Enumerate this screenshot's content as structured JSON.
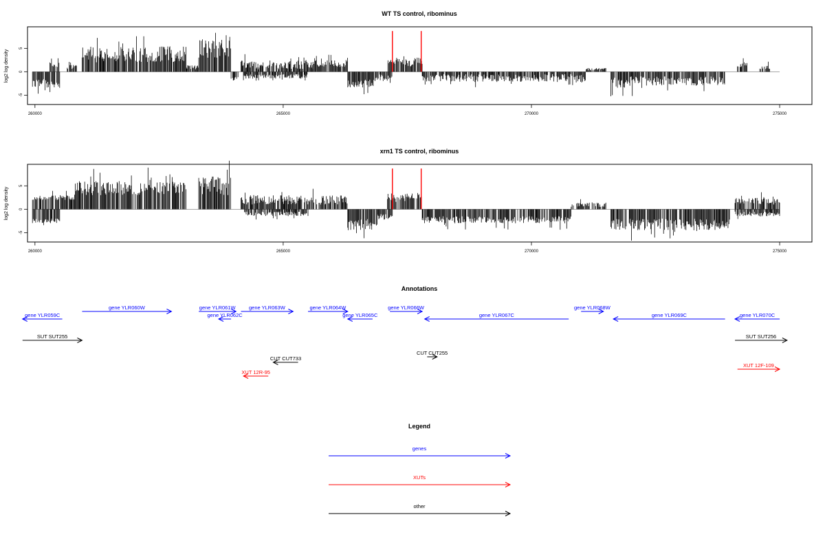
{
  "chart_data": [
    {
      "type": "bar",
      "title": "WT TS control, ribominus",
      "ylabel": "log2 log density",
      "xlim": [
        259850,
        275650
      ],
      "ylim": [
        -7,
        9.6
      ],
      "x_ticks": [
        {
          "value": 260000,
          "label": "260000"
        },
        {
          "value": 265000,
          "label": "265000"
        },
        {
          "value": 270000,
          "label": "270000"
        },
        {
          "value": 275000,
          "label": "275000"
        }
      ],
      "y_ticks": [
        {
          "value": -5,
          "label": "-5"
        },
        {
          "value": 0,
          "label": "0"
        },
        {
          "value": 5,
          "label": "5"
        }
      ],
      "baseline": [
        259950,
        275000
      ],
      "highlight_color": "#ff0000",
      "highlights": [
        {
          "x": 267200,
          "y": 8.7
        },
        {
          "x": 267780,
          "y": 8.7
        }
      ],
      "profile": [
        {
          "x": [
            259950,
            260500
          ],
          "y": [
            -3.5,
            -1.5
          ],
          "pos": false
        },
        {
          "x": [
            260300,
            260500
          ],
          "y": [
            1,
            2
          ],
          "pos": true
        },
        {
          "x": [
            260650,
            260850
          ],
          "y": [
            0.5,
            1.5
          ],
          "pos": true
        },
        {
          "x": [
            260950,
            263050
          ],
          "y": [
            2,
            5.5
          ],
          "pos": true
        },
        {
          "x": [
            263050,
            263300
          ],
          "y": [
            0.5,
            1.5
          ],
          "pos": true
        },
        {
          "x": [
            263300,
            263950
          ],
          "y": [
            3,
            7
          ],
          "pos": true
        },
        {
          "x": [
            263950,
            264100
          ],
          "y": [
            -1,
            -2
          ],
          "pos": false
        },
        {
          "x": [
            264150,
            265500
          ],
          "y": [
            0.5,
            2.5
          ],
          "pos": true
        },
        {
          "x": [
            264200,
            265500
          ],
          "y": [
            -0.5,
            -1.5
          ],
          "pos": false
        },
        {
          "x": [
            265500,
            265600
          ],
          "y": [
            0.5,
            2
          ],
          "pos": true
        },
        {
          "x": [
            265600,
            266300
          ],
          "y": [
            1,
            2.5
          ],
          "pos": true
        },
        {
          "x": [
            266300,
            266850
          ],
          "y": [
            -1.5,
            -3.5
          ],
          "pos": false
        },
        {
          "x": [
            266850,
            267200
          ],
          "y": [
            -0.5,
            -2
          ],
          "pos": false
        },
        {
          "x": [
            267100,
            267350
          ],
          "y": [
            1.5,
            3
          ],
          "pos": true
        },
        {
          "x": [
            267350,
            267650
          ],
          "y": [
            1,
            2.5
          ],
          "pos": true
        },
        {
          "x": [
            267650,
            267800
          ],
          "y": [
            1.5,
            3
          ],
          "pos": true
        },
        {
          "x": [
            267800,
            271100
          ],
          "y": [
            -0.5,
            -2.2
          ],
          "pos": false
        },
        {
          "x": [
            271100,
            271500
          ],
          "y": [
            0.3,
            0.8
          ],
          "pos": true
        },
        {
          "x": [
            271600,
            272500
          ],
          "y": [
            -1,
            -3.5
          ],
          "pos": false
        },
        {
          "x": [
            272500,
            273900
          ],
          "y": [
            -1,
            -3
          ],
          "pos": false
        },
        {
          "x": [
            274150,
            274350
          ],
          "y": [
            1,
            2
          ],
          "pos": true
        },
        {
          "x": [
            274600,
            274800
          ],
          "y": [
            0.5,
            1.5
          ],
          "pos": true
        }
      ]
    },
    {
      "type": "bar",
      "title": "xrn1 TS control, ribominus",
      "ylabel": "log2 log density",
      "xlim": [
        259850,
        275650
      ],
      "ylim": [
        -7,
        9.6
      ],
      "x_ticks": [
        {
          "value": 260000,
          "label": "260000"
        },
        {
          "value": 265000,
          "label": "265000"
        },
        {
          "value": 270000,
          "label": "270000"
        },
        {
          "value": 275000,
          "label": "275000"
        }
      ],
      "y_ticks": [
        {
          "value": -5,
          "label": "-5"
        },
        {
          "value": 0,
          "label": "0"
        },
        {
          "value": 5,
          "label": "5"
        }
      ],
      "baseline": [
        259950,
        275000
      ],
      "highlight_color": "#ff0000",
      "highlights": [
        {
          "x": 267200,
          "y": 8.7
        },
        {
          "x": 267780,
          "y": 8.7
        }
      ],
      "profile": [
        {
          "x": [
            259950,
            260500
          ],
          "y": [
            -3,
            -2
          ],
          "pos": false
        },
        {
          "x": [
            259950,
            260800
          ],
          "y": [
            2,
            3
          ],
          "pos": true
        },
        {
          "x": [
            260800,
            263050
          ],
          "y": [
            3,
            6
          ],
          "pos": true
        },
        {
          "x": [
            263300,
            263950
          ],
          "y": [
            3,
            7
          ],
          "pos": true
        },
        {
          "x": [
            264150,
            265500
          ],
          "y": [
            1,
            3
          ],
          "pos": true
        },
        {
          "x": [
            264200,
            265500
          ],
          "y": [
            -0.5,
            -1.5
          ],
          "pos": false
        },
        {
          "x": [
            265500,
            266300
          ],
          "y": [
            1,
            3
          ],
          "pos": true
        },
        {
          "x": [
            266300,
            266900
          ],
          "y": [
            -2,
            -4.5
          ],
          "pos": false
        },
        {
          "x": [
            266900,
            267200
          ],
          "y": [
            -1,
            -2.5
          ],
          "pos": false
        },
        {
          "x": [
            267100,
            267800
          ],
          "y": [
            1.5,
            3.5
          ],
          "pos": true
        },
        {
          "x": [
            267800,
            270800
          ],
          "y": [
            -1.5,
            -3
          ],
          "pos": false
        },
        {
          "x": [
            270800,
            271500
          ],
          "y": [
            0.5,
            1.5
          ],
          "pos": true
        },
        {
          "x": [
            271600,
            274000
          ],
          "y": [
            -2,
            -4.5
          ],
          "pos": false
        },
        {
          "x": [
            274100,
            275000
          ],
          "y": [
            1,
            2.5
          ],
          "pos": true
        },
        {
          "x": [
            274100,
            275000
          ],
          "y": [
            -0.5,
            -1.5
          ],
          "pos": false
        }
      ]
    }
  ],
  "annotations": {
    "title": "Annotations",
    "xlim": [
      259850,
      275650
    ],
    "items": [
      {
        "label": "gene YLR059C",
        "x1": 260550,
        "x2": 259750,
        "row": 1,
        "color": "#0000ff"
      },
      {
        "label": "gene YLR060W",
        "x1": 260950,
        "x2": 262750,
        "row": 0,
        "color": "#0000ff"
      },
      {
        "label": "gene YLR061W",
        "x1": 263300,
        "x2": 264050,
        "row": 0,
        "color": "#0000ff"
      },
      {
        "label": "gene YLR062C",
        "x1": 263950,
        "x2": 263700,
        "row": 1,
        "color": "#0000ff"
      },
      {
        "label": "gene YLR063W",
        "x1": 264150,
        "x2": 265200,
        "row": 0,
        "color": "#0000ff"
      },
      {
        "label": "gene YLR064W",
        "x1": 265500,
        "x2": 266300,
        "row": 0,
        "color": "#0000ff"
      },
      {
        "label": "gene YLR065C",
        "x1": 266800,
        "x2": 266300,
        "row": 1,
        "color": "#0000ff"
      },
      {
        "label": "gene YLR066W",
        "x1": 267150,
        "x2": 267800,
        "row": 0,
        "color": "#0000ff"
      },
      {
        "label": "gene YLR067C",
        "x1": 270750,
        "x2": 267850,
        "row": 1,
        "color": "#0000ff"
      },
      {
        "label": "gene YLR068W",
        "x1": 271000,
        "x2": 271450,
        "row": 0,
        "color": "#0000ff"
      },
      {
        "label": "gene YLR069C",
        "x1": 273900,
        "x2": 271650,
        "row": 1,
        "color": "#0000ff"
      },
      {
        "label": "gene YLR070C",
        "x1": 275000,
        "x2": 274100,
        "row": 1,
        "color": "#0000ff"
      },
      {
        "label": "SUT SUT255",
        "x1": 259750,
        "x2": 260950,
        "row": 2,
        "color": "#000000"
      },
      {
        "label": "SUT SUT256",
        "x1": 274100,
        "x2": 275150,
        "row": 2,
        "color": "#000000"
      },
      {
        "label": "CUT CUT733",
        "x1": 265300,
        "x2": 264800,
        "row": 3,
        "color": "#000000"
      },
      {
        "label": "CUT CUT255",
        "x1": 267900,
        "x2": 268100,
        "row": 3,
        "color": "#000000",
        "row_offset": -8
      },
      {
        "label": "XUT 12R-95",
        "x1": 264700,
        "x2": 264200,
        "row": 4,
        "color": "#ff0000"
      },
      {
        "label": "XUT 12F-109",
        "x1": 274150,
        "x2": 275000,
        "row": 4,
        "color": "#ff0000",
        "row_offset": -10
      }
    ]
  },
  "legend": {
    "title": "Legend",
    "items": [
      {
        "label": "genes",
        "color": "#0000ff"
      },
      {
        "label": "XUTs",
        "color": "#ff0000"
      },
      {
        "label": "other",
        "color": "#000000"
      }
    ]
  }
}
